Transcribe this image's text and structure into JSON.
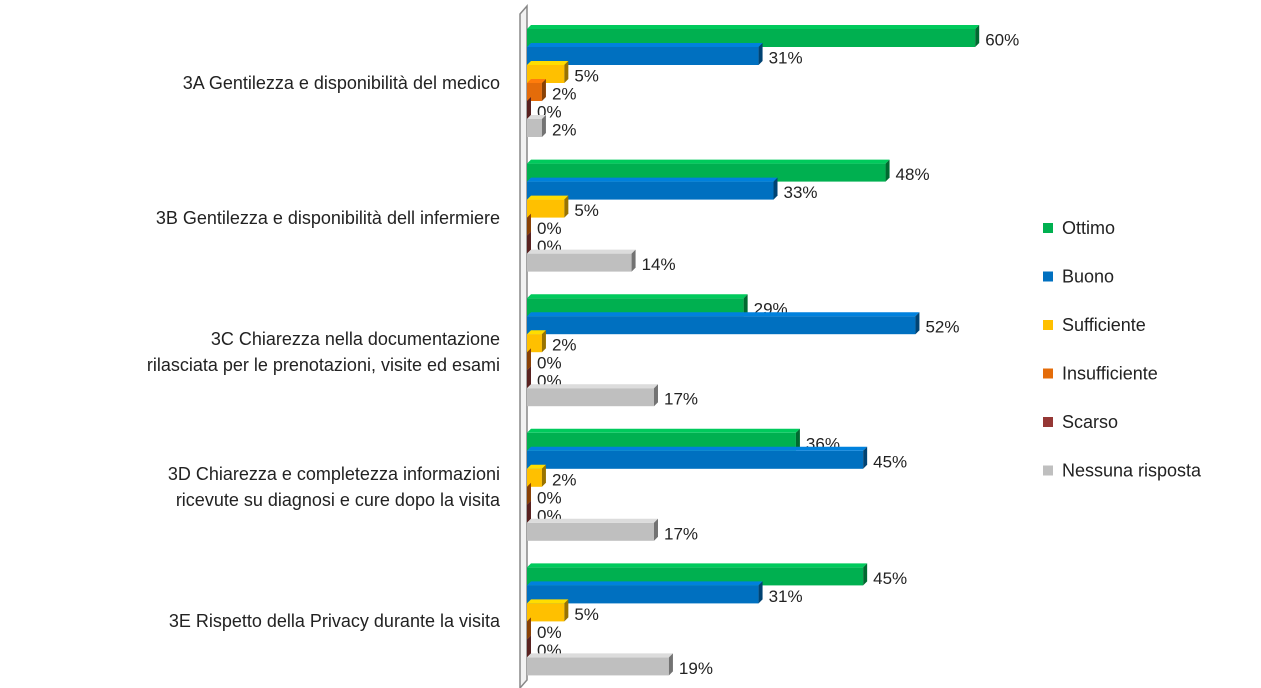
{
  "chart_data": {
    "type": "bar",
    "orientation": "horizontal",
    "categories": [
      "3A Gentilezza e disponibilità del medico",
      "3B Gentilezza e disponibilità dell infermiere",
      "3C Chiarezza nella documentazione rilasciata per le prenotazioni, visite ed esami",
      "3D Chiarezza e completezza informazioni ricevute su diagnosi e cure dopo la visita",
      "3E Rispetto della Privacy durante la visita"
    ],
    "series": [
      {
        "name": "Ottimo",
        "color": "#00b050",
        "values": [
          60,
          48,
          29,
          36,
          45
        ],
        "value_labels": [
          "60%",
          "48%",
          "29%",
          "36%",
          "45%"
        ]
      },
      {
        "name": "Buono",
        "color": "#0070c0",
        "values": [
          31,
          33,
          52,
          45,
          31
        ],
        "value_labels": [
          "31%",
          "33%",
          "52%",
          "45%",
          "31%"
        ]
      },
      {
        "name": "Sufficiente",
        "color": "#ffc000",
        "values": [
          5,
          5,
          2,
          2,
          5
        ],
        "value_labels": [
          "5%",
          "5%",
          "2%",
          "2%",
          "5%"
        ]
      },
      {
        "name": "Insufficiente",
        "color": "#e46c0a",
        "values": [
          2,
          0,
          0,
          0,
          0
        ],
        "value_labels": [
          "2%",
          "0%",
          "0%",
          "0%",
          "0%"
        ]
      },
      {
        "name": "Scarso",
        "color": "#953735",
        "values": [
          0,
          0,
          0,
          0,
          0
        ],
        "value_labels": [
          "0%",
          "0%",
          "0%",
          "0%",
          "0%"
        ]
      },
      {
        "name": "Nessuna risposta",
        "color": "#bfbfbf",
        "values": [
          2,
          14,
          17,
          17,
          19
        ],
        "value_labels": [
          "2%",
          "14%",
          "17%",
          "17%",
          "19%"
        ]
      }
    ],
    "legend": "right"
  }
}
